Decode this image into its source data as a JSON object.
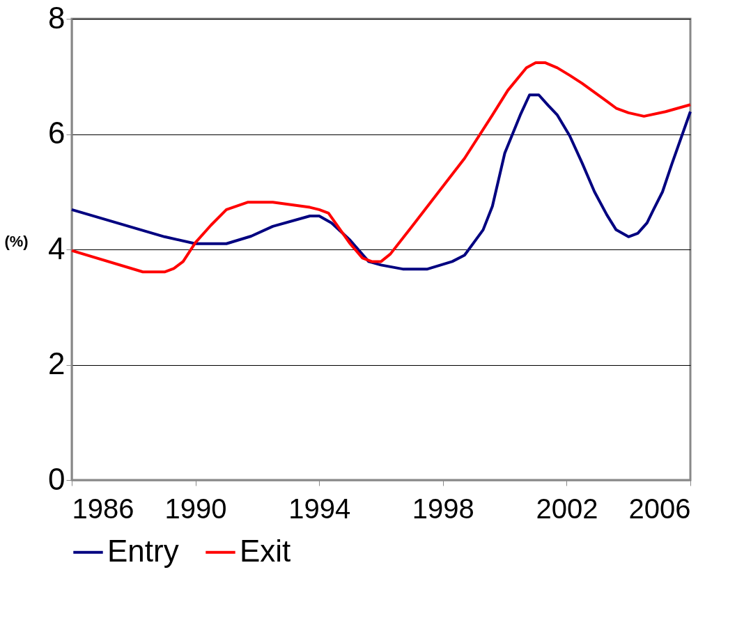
{
  "chart_data": {
    "type": "line",
    "ylabel": "(%)",
    "xlim": [
      1986,
      2006
    ],
    "xticks": [
      1986,
      1990,
      1994,
      1998,
      2002,
      2006
    ],
    "ylim": [
      0,
      8
    ],
    "yticks": [
      0,
      2,
      4,
      6,
      8
    ],
    "grid": "y",
    "legend": "bottom",
    "marker": "none",
    "line_style": "solid",
    "series": [
      {
        "name": "Entry",
        "color": "#000080",
        "x": [
          1986,
          1989,
          1990,
          1991,
          1991.8,
          1992.5,
          1993.7,
          1994,
          1994.4,
          1995,
          1995.6,
          1996,
          1996.7,
          1997.5,
          1998.3,
          1998.7,
          1999,
          1999.3,
          1999.6,
          2000,
          2000.5,
          2000.8,
          2001.1,
          2001.4,
          2001.7,
          2002.1,
          2002.5,
          2002.9,
          2003.3,
          2003.6,
          2004,
          2004.3,
          2004.6,
          2004.8,
          2005.1,
          2005.4,
          2006
        ],
        "values": [
          4.69,
          4.22,
          4.1,
          4.1,
          4.23,
          4.4,
          4.58,
          4.58,
          4.46,
          4.16,
          3.79,
          3.73,
          3.66,
          3.66,
          3.79,
          3.9,
          4.12,
          4.34,
          4.75,
          5.67,
          6.33,
          6.68,
          6.68,
          6.5,
          6.33,
          5.97,
          5.5,
          5.0,
          4.6,
          4.34,
          4.22,
          4.28,
          4.46,
          4.68,
          5.0,
          5.48,
          6.39
        ]
      },
      {
        "name": "Exit",
        "color": "#ff0000",
        "x": [
          1986,
          1988.3,
          1989,
          1989.3,
          1989.6,
          1990,
          1990.5,
          1991,
          1991.7,
          1992.5,
          1993.7,
          1994,
          1994.3,
          1995,
          1995.4,
          1995.7,
          1996,
          1996.3,
          1997,
          1998.7,
          1999.6,
          2000.1,
          2000.7,
          2001,
          2001.3,
          2001.7,
          2002.1,
          2002.5,
          2003.3,
          2003.6,
          2004,
          2004.5,
          2005.2,
          2006
        ],
        "values": [
          3.98,
          3.61,
          3.61,
          3.67,
          3.79,
          4.12,
          4.42,
          4.69,
          4.82,
          4.82,
          4.73,
          4.69,
          4.63,
          4.1,
          3.85,
          3.79,
          3.79,
          3.92,
          4.4,
          5.58,
          6.33,
          6.76,
          7.15,
          7.24,
          7.24,
          7.15,
          7.02,
          6.88,
          6.57,
          6.45,
          6.37,
          6.31,
          6.39,
          6.51
        ]
      }
    ]
  }
}
